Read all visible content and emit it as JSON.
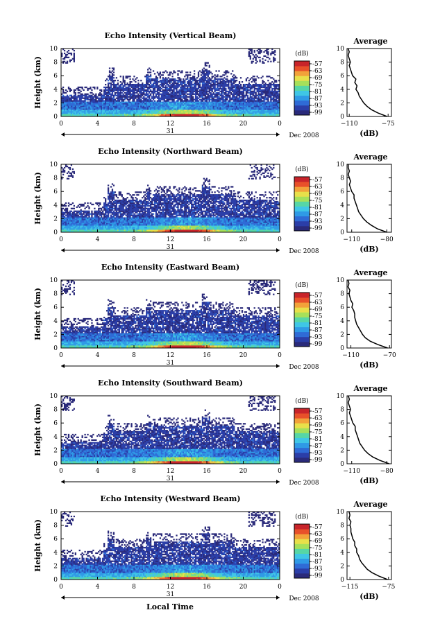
{
  "figure": {
    "xlabel": "Local Time"
  },
  "colorscale": [
    "#2a2a7a",
    "#2b3ea8",
    "#2f6bd6",
    "#2f9ae6",
    "#3fc6e6",
    "#56d6a6",
    "#a6e05a",
    "#e8e04a",
    "#f2a23a",
    "#e8502a",
    "#c8242a"
  ],
  "chart_data": [
    {
      "type": "heatmap",
      "title": "Echo Intensity (Vertical Beam)",
      "ylabel": "Height (km)",
      "xlabel": "Local Time",
      "x_ticks": [
        "0",
        "4",
        "8",
        "12",
        "16",
        "20",
        "0"
      ],
      "y_ticks": [
        "0",
        "2",
        "4",
        "6",
        "8",
        "10"
      ],
      "xlim": [
        0,
        24
      ],
      "ylim": [
        0,
        10
      ],
      "day_label": "31",
      "date_label": "Dec 2008",
      "colorbar": {
        "unit": "(dB)",
        "ticks": [
          "-57",
          "-63",
          "-69",
          "-75",
          "-81",
          "-87",
          "-93",
          "-99"
        ]
      },
      "average_panel": {
        "title": "Average",
        "xlabel": "(dB)",
        "x_ticks": [
          "-110",
          "-75"
        ],
        "xlim": [
          -112,
          -72
        ],
        "y_ticks": [
          "0",
          "2",
          "4",
          "6",
          "8",
          "10"
        ],
        "profile": [
          [
            -76,
            0
          ],
          [
            -84,
            0.5
          ],
          [
            -90,
            1
          ],
          [
            -94,
            1.5
          ],
          [
            -97,
            2
          ],
          [
            -99,
            2.5
          ],
          [
            -101,
            3
          ],
          [
            -102,
            3.5
          ],
          [
            -104,
            4
          ],
          [
            -103,
            4.5
          ],
          [
            -105,
            5
          ],
          [
            -104,
            5.5
          ],
          [
            -107,
            6
          ],
          [
            -108,
            6.5
          ],
          [
            -109,
            7
          ],
          [
            -110,
            7.5
          ],
          [
            -109,
            8
          ],
          [
            -110,
            8.5
          ],
          [
            -111,
            9
          ],
          [
            -110,
            9.5
          ],
          [
            -111,
            10
          ]
        ]
      }
    },
    {
      "type": "heatmap",
      "title": "Echo Intensity (Northward Beam)",
      "ylabel": "Height (km)",
      "xlabel": "Local Time",
      "x_ticks": [
        "0",
        "4",
        "8",
        "12",
        "16",
        "20",
        "0"
      ],
      "y_ticks": [
        "0",
        "2",
        "4",
        "6",
        "8",
        "10"
      ],
      "xlim": [
        0,
        24
      ],
      "ylim": [
        0,
        10
      ],
      "day_label": "31",
      "date_label": "Dec 2008",
      "colorbar": {
        "unit": "(dB)",
        "ticks": [
          "-57",
          "-63",
          "-69",
          "-75",
          "-81",
          "-87",
          "-93",
          "-99"
        ]
      },
      "average_panel": {
        "title": "Average",
        "xlabel": "(dB)",
        "x_ticks": [
          "-110",
          "-80"
        ],
        "xlim": [
          -114,
          -76
        ],
        "y_ticks": [
          "0",
          "2",
          "4",
          "6",
          "8",
          "10"
        ],
        "profile": [
          [
            -80,
            0
          ],
          [
            -88,
            0.5
          ],
          [
            -93,
            1
          ],
          [
            -97,
            1.5
          ],
          [
            -100,
            2
          ],
          [
            -102,
            2.5
          ],
          [
            -104,
            3
          ],
          [
            -105,
            3.5
          ],
          [
            -106,
            4
          ],
          [
            -107,
            4.5
          ],
          [
            -108,
            5
          ],
          [
            -108,
            5.5
          ],
          [
            -110,
            6
          ],
          [
            -111,
            6.5
          ],
          [
            -112,
            7
          ],
          [
            -111,
            7.5
          ],
          [
            -112,
            8
          ],
          [
            -113,
            8.5
          ],
          [
            -112,
            9
          ],
          [
            -113,
            9.5
          ],
          [
            -113,
            10
          ]
        ]
      }
    },
    {
      "type": "heatmap",
      "title": "Echo Intensity (Eastward Beam)",
      "ylabel": "Height (km)",
      "xlabel": "Local Time",
      "x_ticks": [
        "0",
        "4",
        "8",
        "12",
        "16",
        "20",
        "0"
      ],
      "y_ticks": [
        "0",
        "2",
        "4",
        "6",
        "8",
        "10"
      ],
      "xlim": [
        0,
        24
      ],
      "ylim": [
        0,
        10
      ],
      "day_label": "31",
      "date_label": "Dec 2008",
      "colorbar": {
        "unit": "(dB)",
        "ticks": [
          "-57",
          "-63",
          "-69",
          "-75",
          "-81",
          "-87",
          "-93",
          "-99"
        ]
      },
      "average_panel": {
        "title": "Average",
        "xlabel": "(dB)",
        "x_ticks": [
          "-110",
          "-70"
        ],
        "xlim": [
          -114,
          -68
        ],
        "y_ticks": [
          "0",
          "2",
          "4",
          "6",
          "8",
          "10"
        ],
        "profile": [
          [
            -72,
            0
          ],
          [
            -82,
            0.5
          ],
          [
            -90,
            1
          ],
          [
            -95,
            1.5
          ],
          [
            -98,
            2
          ],
          [
            -100,
            2.5
          ],
          [
            -102,
            3
          ],
          [
            -104,
            3.5
          ],
          [
            -105,
            4
          ],
          [
            -106,
            4.5
          ],
          [
            -106,
            5
          ],
          [
            -107,
            5.5
          ],
          [
            -109,
            6
          ],
          [
            -108,
            6.5
          ],
          [
            -110,
            7
          ],
          [
            -111,
            7.5
          ],
          [
            -112,
            8
          ],
          [
            -111,
            8.5
          ],
          [
            -113,
            9
          ],
          [
            -112,
            9.5
          ],
          [
            -113,
            10
          ]
        ]
      }
    },
    {
      "type": "heatmap",
      "title": "Echo Intensity (Southward Beam)",
      "ylabel": "Height (km)",
      "xlabel": "Local Time",
      "x_ticks": [
        "0",
        "4",
        "8",
        "12",
        "16",
        "20",
        "0"
      ],
      "y_ticks": [
        "0",
        "2",
        "4",
        "6",
        "8",
        "10"
      ],
      "xlim": [
        0,
        24
      ],
      "ylim": [
        0,
        10
      ],
      "day_label": "31",
      "date_label": "Dec 2008",
      "colorbar": {
        "unit": "(dB)",
        "ticks": [
          "-57",
          "-63",
          "-69",
          "-75",
          "-81",
          "-87",
          "-93",
          "-99"
        ]
      },
      "average_panel": {
        "title": "Average",
        "xlabel": "(dB)",
        "x_ticks": [
          "-110",
          "-80"
        ],
        "xlim": [
          -114,
          -76
        ],
        "y_ticks": [
          "0",
          "2",
          "4",
          "6",
          "8",
          "10"
        ],
        "profile": [
          [
            -78,
            0
          ],
          [
            -86,
            0.5
          ],
          [
            -92,
            1
          ],
          [
            -96,
            1.5
          ],
          [
            -99,
            2
          ],
          [
            -101,
            2.5
          ],
          [
            -103,
            3
          ],
          [
            -104,
            3.5
          ],
          [
            -105,
            4
          ],
          [
            -106,
            4.5
          ],
          [
            -107,
            5
          ],
          [
            -107,
            5.5
          ],
          [
            -109,
            6
          ],
          [
            -110,
            6.5
          ],
          [
            -111,
            7
          ],
          [
            -112,
            7.5
          ],
          [
            -111,
            8
          ],
          [
            -112,
            8.5
          ],
          [
            -113,
            9
          ],
          [
            -112,
            9.5
          ],
          [
            -113,
            10
          ]
        ]
      }
    },
    {
      "type": "heatmap",
      "title": "Echo Intensity (Westward Beam)",
      "ylabel": "Height (km)",
      "xlabel": "Local Time",
      "x_ticks": [
        "0",
        "4",
        "8",
        "12",
        "16",
        "20",
        "0"
      ],
      "y_ticks": [
        "0",
        "2",
        "4",
        "6",
        "8",
        "10"
      ],
      "xlim": [
        0,
        24
      ],
      "ylim": [
        0,
        10
      ],
      "day_label": "31",
      "date_label": "Dec 2008",
      "colorbar": {
        "unit": "(dB)",
        "ticks": [
          "-57",
          "-63",
          "-69",
          "-75",
          "-81",
          "-87",
          "-93",
          "-99"
        ]
      },
      "average_panel": {
        "title": "Average",
        "xlabel": "(dB)",
        "x_ticks": [
          "-115",
          "-75"
        ],
        "xlim": [
          -118,
          -72
        ],
        "y_ticks": [
          "0",
          "2",
          "4",
          "6",
          "8",
          "10"
        ],
        "profile": [
          [
            -76,
            0
          ],
          [
            -85,
            0.5
          ],
          [
            -92,
            1
          ],
          [
            -97,
            1.5
          ],
          [
            -100,
            2
          ],
          [
            -103,
            2.5
          ],
          [
            -105,
            3
          ],
          [
            -106,
            3.5
          ],
          [
            -108,
            4
          ],
          [
            -108,
            4.5
          ],
          [
            -110,
            5
          ],
          [
            -110,
            5.5
          ],
          [
            -112,
            6
          ],
          [
            -113,
            6.5
          ],
          [
            -114,
            7
          ],
          [
            -114,
            7.5
          ],
          [
            -115,
            8
          ],
          [
            -114,
            8.5
          ],
          [
            -116,
            9
          ],
          [
            -115,
            9.5
          ],
          [
            -116,
            10
          ]
        ]
      }
    }
  ]
}
